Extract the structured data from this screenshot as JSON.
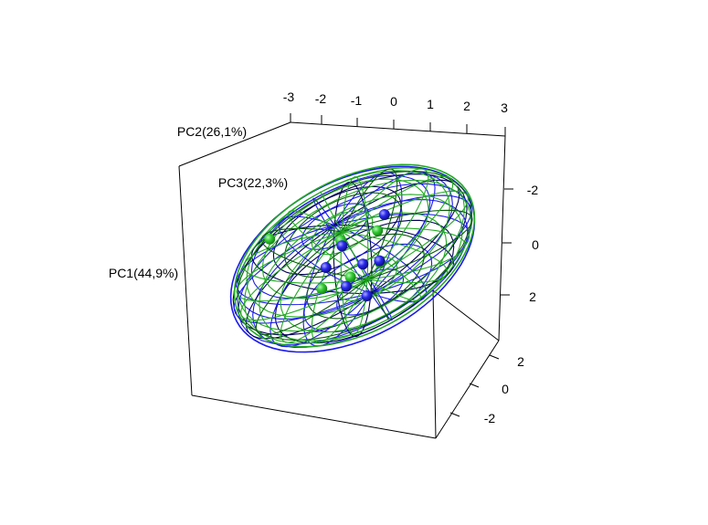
{
  "chart_data": {
    "type": "scatter",
    "subtype": "3d-pca-scatter-with-confidence-ellipsoids",
    "axis_labels": {
      "pc1": "PC1(44,9%)",
      "pc2": "PC2(26,1%)",
      "pc3": "PC3(22,3%)"
    },
    "ticks": {
      "top": [
        "-3",
        "-2",
        "-1",
        "0",
        "1",
        "2",
        "3"
      ],
      "right_upper": [
        "-2",
        "0",
        "2"
      ],
      "right_lower": [
        "2",
        "0",
        "-2"
      ]
    },
    "series": [
      {
        "color": "#2fb82f",
        "points": [
          {
            "pc1": -2.7,
            "pc2": -2.4,
            "pc3": 1.6
          },
          {
            "pc1": -0.4,
            "pc2": -0.9,
            "pc3": 0.4
          },
          {
            "pc1": 0.7,
            "pc2": -0.8,
            "pc3": 0.2
          },
          {
            "pc1": -0.8,
            "pc2": 1.3,
            "pc3": -0.3
          },
          {
            "pc1": 0.9,
            "pc2": 0.9,
            "pc3": -0.4
          },
          {
            "pc1": -0.1,
            "pc2": 0.8,
            "pc3": 0.3
          }
        ]
      },
      {
        "color": "#1a1aee",
        "points": [
          {
            "pc1": 0.9,
            "pc2": -1.4,
            "pc3": 0.2
          },
          {
            "pc1": 0.3,
            "pc2": 0.5,
            "pc3": 0.1
          },
          {
            "pc1": 0.8,
            "pc2": 0.6,
            "pc3": 0.0
          },
          {
            "pc1": -0.7,
            "pc2": 0.4,
            "pc3": -0.2
          },
          {
            "pc1": -0.2,
            "pc2": 1.2,
            "pc3": 0.2
          },
          {
            "pc1": 0.5,
            "pc2": 2.1,
            "pc3": -0.3
          },
          {
            "pc1": -0.3,
            "pc2": -0.5,
            "pc3": 0.1
          }
        ]
      }
    ],
    "ellipsoid_colors": {
      "green_wire": "#22aa22",
      "green_dark_wire": "#0a5a0a",
      "blue_wire": "#1a1aee",
      "blue_dark_wire": "#000055"
    }
  }
}
